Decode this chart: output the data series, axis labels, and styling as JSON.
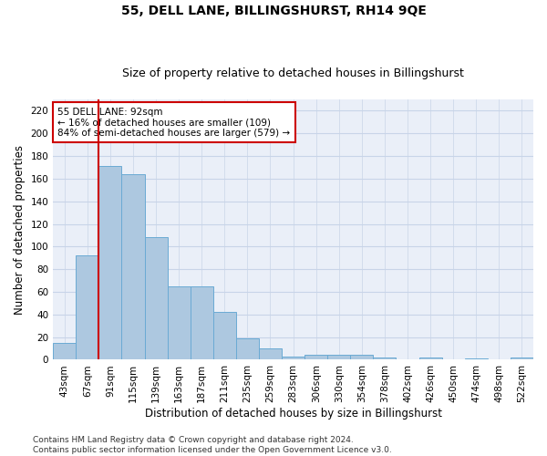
{
  "title": "55, DELL LANE, BILLINGSHURST, RH14 9QE",
  "subtitle": "Size of property relative to detached houses in Billingshurst",
  "xlabel": "Distribution of detached houses by size in Billingshurst",
  "ylabel": "Number of detached properties",
  "categories": [
    "43sqm",
    "67sqm",
    "91sqm",
    "115sqm",
    "139sqm",
    "163sqm",
    "187sqm",
    "211sqm",
    "235sqm",
    "259sqm",
    "283sqm",
    "306sqm",
    "330sqm",
    "354sqm",
    "378sqm",
    "402sqm",
    "426sqm",
    "450sqm",
    "474sqm",
    "498sqm",
    "522sqm"
  ],
  "values": [
    15,
    92,
    171,
    164,
    108,
    65,
    65,
    42,
    19,
    10,
    3,
    4,
    4,
    4,
    2,
    0,
    2,
    0,
    1,
    0,
    2
  ],
  "bar_color": "#adc8e0",
  "bar_edge_color": "#6aaad4",
  "vline_color": "#cc0000",
  "vline_x": 1.5,
  "annotation_text": "55 DELL LANE: 92sqm\n← 16% of detached houses are smaller (109)\n84% of semi-detached houses are larger (579) →",
  "annotation_box_color": "#ffffff",
  "annotation_box_edge_color": "#cc0000",
  "ylim": [
    0,
    230
  ],
  "yticks": [
    0,
    20,
    40,
    60,
    80,
    100,
    120,
    140,
    160,
    180,
    200,
    220
  ],
  "grid_color": "#c8d4e8",
  "background_color": "#eaeff8",
  "footer": "Contains HM Land Registry data © Crown copyright and database right 2024.\nContains public sector information licensed under the Open Government Licence v3.0.",
  "title_fontsize": 10,
  "subtitle_fontsize": 9,
  "xlabel_fontsize": 8.5,
  "ylabel_fontsize": 8.5,
  "tick_fontsize": 7.5,
  "annotation_fontsize": 7.5,
  "footer_fontsize": 6.5
}
